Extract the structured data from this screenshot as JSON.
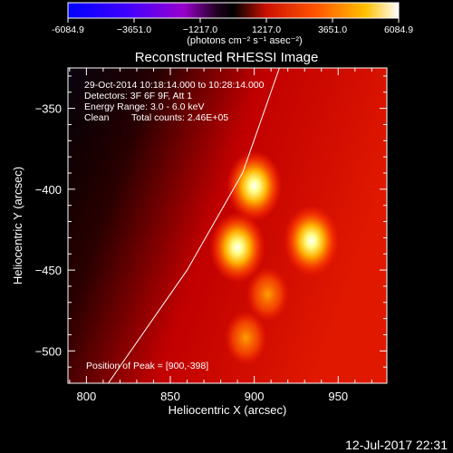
{
  "chart_data": {
    "type": "heatmap",
    "title": "Reconstructed RHESSI Image",
    "xlabel": "Heliocentric X (arcsec)",
    "ylabel": "Heliocentric Y (arcsec)",
    "xlim": [
      789,
      979
    ],
    "ylim": [
      -520,
      -325
    ],
    "xticks": [
      800,
      850,
      900,
      950
    ],
    "yticks": [
      -350,
      -400,
      -450,
      -500
    ],
    "colorbar": {
      "min": -6084.9,
      "max": 6084.9,
      "ticks": [
        "-6084.9",
        "−3651.0",
        "−1217.0",
        "1217.0",
        "3651.0",
        "6084.9"
      ],
      "ticks_clean": [
        "-6084.9",
        "-3651.0",
        "-1217.0",
        "1217.0",
        "3651.0",
        "6084.9"
      ],
      "unit_label": "(photons cm⁻² s⁻¹ asec⁻²)"
    },
    "annotations": {
      "time": "29-Oct-2014 10:18:14.000 to 10:28:14.000",
      "detectors": "Detectors: 3F 6F 9F, Att 1",
      "energy": "Energy Range: 3.0 - 6.0 keV",
      "clean": "Clean",
      "counts": "Total counts: 2.46E+05",
      "peak": "Position of Peak = [900,-398]"
    },
    "sources": [
      {
        "x": 900,
        "y": -398,
        "value": 6084.9
      },
      {
        "x": 890,
        "y": -436,
        "value": 5300
      },
      {
        "x": 934,
        "y": -432,
        "value": 5200
      },
      {
        "x": 908,
        "y": -465,
        "value": 3600
      },
      {
        "x": 895,
        "y": -492,
        "value": 3000
      }
    ],
    "limb": [
      {
        "x": 813,
        "y": -520
      },
      {
        "x": 860,
        "y": -450
      },
      {
        "x": 893,
        "y": -390
      },
      {
        "x": 915,
        "y": -325
      }
    ],
    "footer_date": "12-Jul-2017 22:31"
  }
}
